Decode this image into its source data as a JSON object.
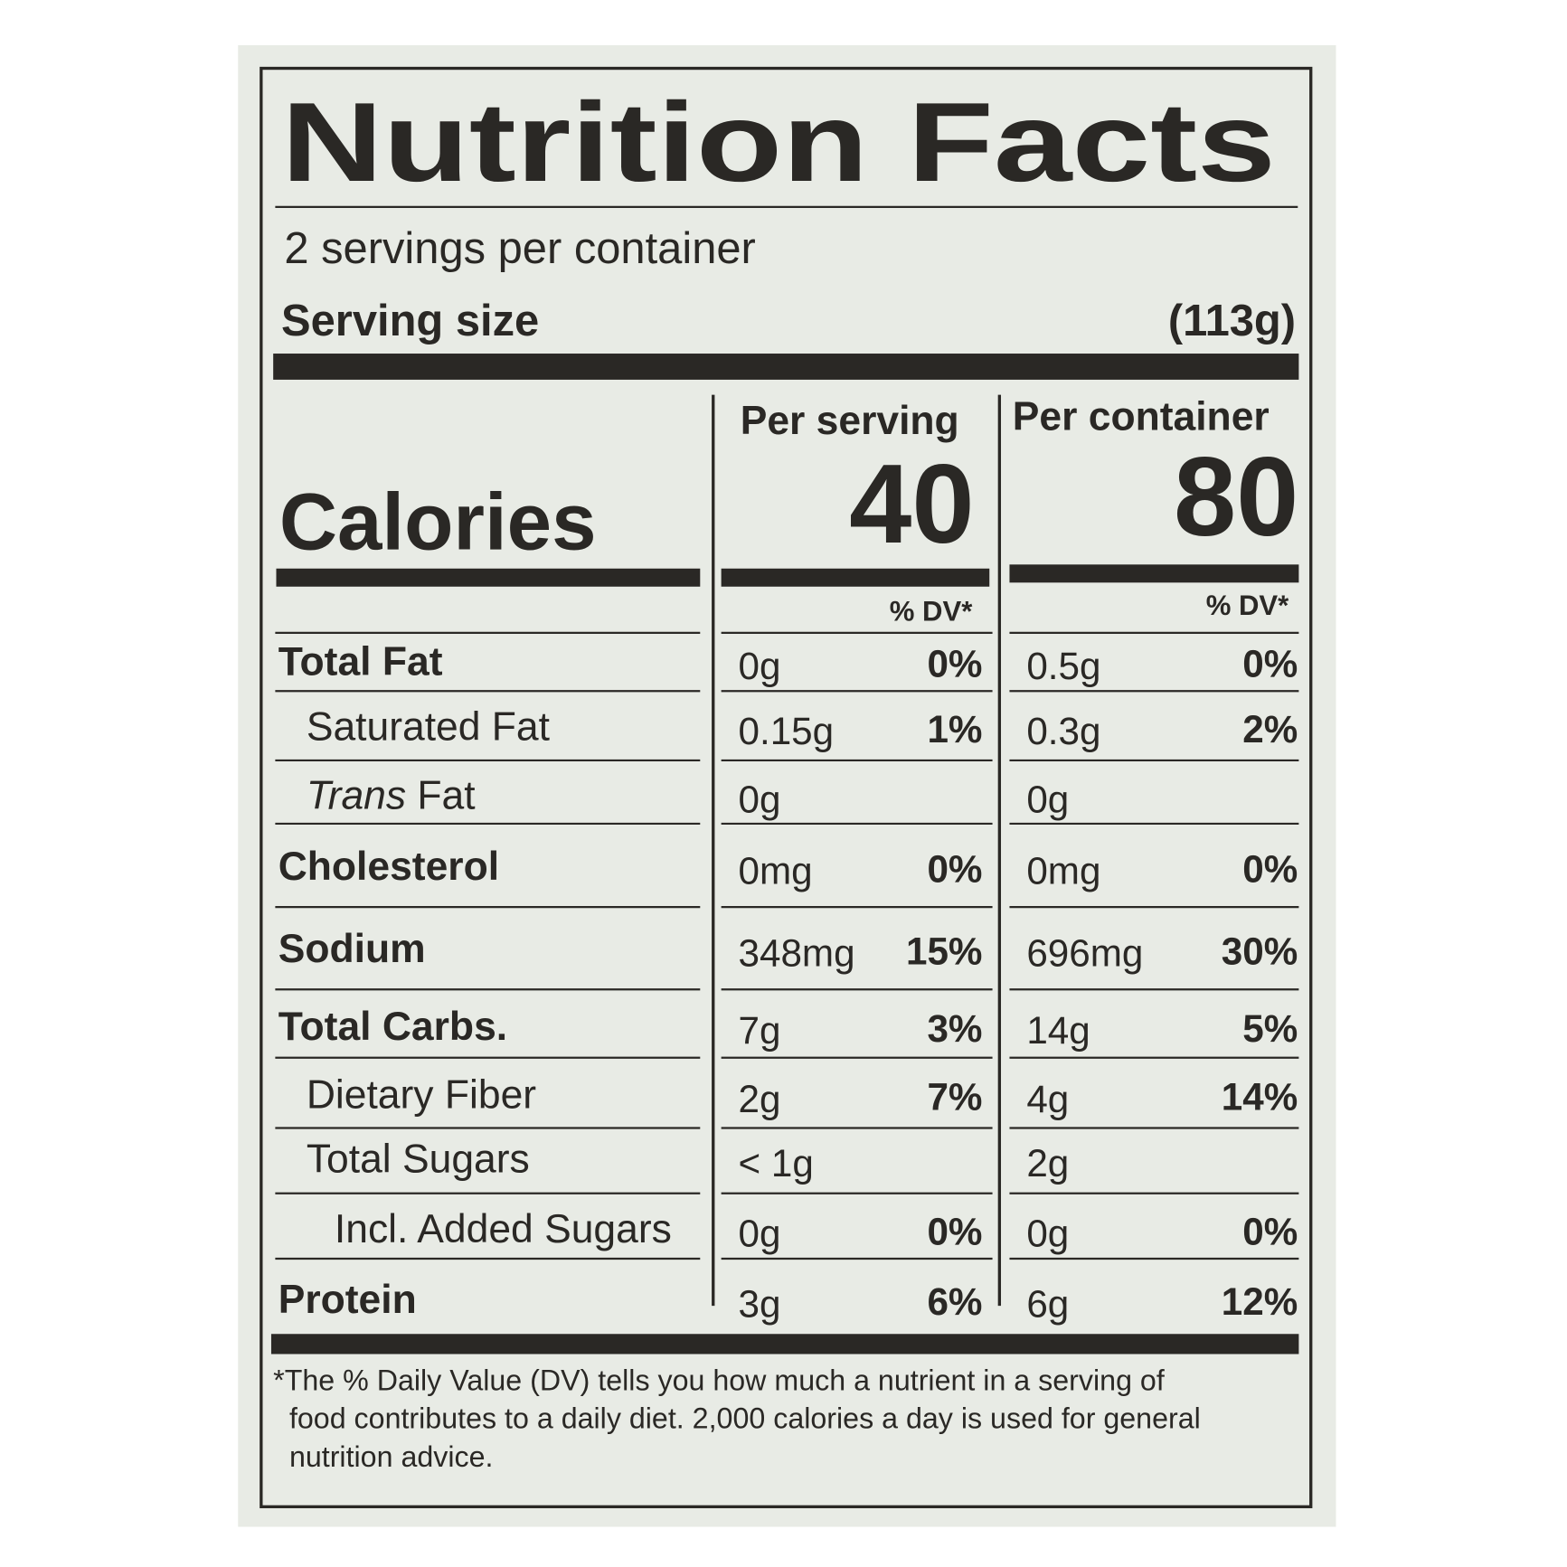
{
  "title": "Nutrition Facts",
  "servings": "2 servings per container",
  "serving_size": {
    "label": "Serving size",
    "value": "(113g)"
  },
  "columns": [
    "Per serving",
    "Per container"
  ],
  "calories": {
    "label": "Calories",
    "values": [
      "40",
      "80"
    ]
  },
  "dv_header": [
    "% DV*",
    "% DV*"
  ],
  "rows": [
    {
      "label": "Total Fat",
      "per_serving": [
        "0g",
        "0%"
      ],
      "per_container": [
        "0.5g",
        "0%"
      ]
    },
    {
      "label": "Saturated Fat",
      "per_serving": [
        "0.15g",
        "1%"
      ],
      "per_container": [
        "0.3g",
        "2%"
      ]
    },
    {
      "label_italic": "Trans",
      "label": "Fat",
      "per_serving": [
        "0g"
      ],
      "per_container": [
        "0g"
      ]
    },
    {
      "label": "Cholesterol",
      "per_serving": [
        "0mg",
        "0%"
      ],
      "per_container": [
        "0mg",
        "0%"
      ]
    },
    {
      "label": "Sodium",
      "per_serving": [
        "348mg",
        "15%"
      ],
      "per_container": [
        "696mg",
        "30%"
      ]
    },
    {
      "label": "Total Carbs.",
      "per_serving": [
        "7g",
        "3%"
      ],
      "per_container": [
        "14g",
        "5%"
      ]
    },
    {
      "label": "Dietary Fiber",
      "per_serving": [
        "2g",
        "7%"
      ],
      "per_container": [
        "4g",
        "14%"
      ]
    },
    {
      "label": "Total Sugars",
      "per_serving": [
        "< 1g"
      ],
      "per_container": [
        "2g"
      ]
    },
    {
      "label": "Incl. Added Sugars",
      "per_serving": [
        "0g",
        "0%"
      ],
      "per_container": [
        "0g",
        "0%"
      ]
    },
    {
      "label": "Protein",
      "per_serving": [
        "3g",
        "6%"
      ],
      "per_container": [
        "6g",
        "12%"
      ]
    }
  ],
  "footnote": [
    "*The % Daily Value (DV) tells you how much a nutrient in a serving of",
    "food contributes to a daily diet. 2,000 calories a day is used for general",
    "nutrition advice."
  ]
}
